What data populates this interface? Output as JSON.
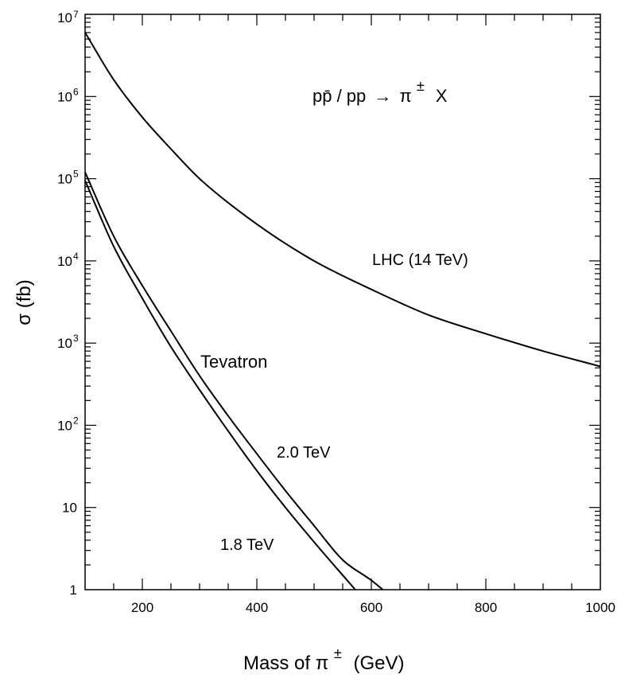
{
  "chart_data": {
    "type": "line",
    "title": "pp̄ / pp → π± X",
    "title_parts": {
      "left": "pp̄ / pp",
      "arrow": "→",
      "particle": "π",
      "charge": "±",
      "rest": "X"
    },
    "xlabel": "Mass of π± (GeV)",
    "xlabel_parts": {
      "left": "Mass of π",
      "charge": "±",
      "right": "(GeV)"
    },
    "ylabel": "σ  (fb)",
    "xlim": [
      100,
      1000
    ],
    "ylim": [
      1,
      10000000
    ],
    "yscale": "log",
    "x_ticks": [
      200,
      400,
      600,
      800,
      1000
    ],
    "x_tick_labels": [
      "200",
      "400",
      "600",
      "800",
      "1000"
    ],
    "y_tick_labels": [
      {
        "base": "1",
        "exp": ""
      },
      {
        "base": "10",
        "exp": ""
      },
      {
        "base": "10",
        "exp": "2"
      },
      {
        "base": "10",
        "exp": "3"
      },
      {
        "base": "10",
        "exp": "4"
      },
      {
        "base": "10",
        "exp": "5"
      },
      {
        "base": "10",
        "exp": "6"
      },
      {
        "base": "10",
        "exp": "7"
      }
    ],
    "annotations": {
      "lhc": "LHC (14 TeV)",
      "tevatron": "Tevatron",
      "tev20": "2.0 TeV",
      "tev18": "1.8 TeV"
    },
    "series": [
      {
        "name": "LHC (14 TeV)",
        "x": [
          100,
          150,
          200,
          250,
          300,
          400,
          500,
          600,
          700,
          800,
          900,
          1000
        ],
        "y": [
          6000000,
          1600000,
          560000,
          230000,
          100000,
          28000,
          10000,
          4500,
          2200,
          1300,
          800,
          520
        ]
      },
      {
        "name": "2.0 TeV",
        "x": [
          100,
          150,
          200,
          250,
          300,
          350,
          400,
          450,
          500,
          550,
          600,
          620
        ],
        "y": [
          120000,
          20000,
          5000,
          1400,
          400,
          130,
          45,
          16,
          6,
          2.3,
          1.3,
          1
        ]
      },
      {
        "name": "1.8 TeV",
        "x": [
          100,
          150,
          200,
          250,
          300,
          350,
          400,
          450,
          500,
          550,
          572
        ],
        "y": [
          95000,
          15000,
          3500,
          900,
          270,
          85,
          28,
          10,
          3.8,
          1.5,
          1
        ]
      }
    ]
  }
}
